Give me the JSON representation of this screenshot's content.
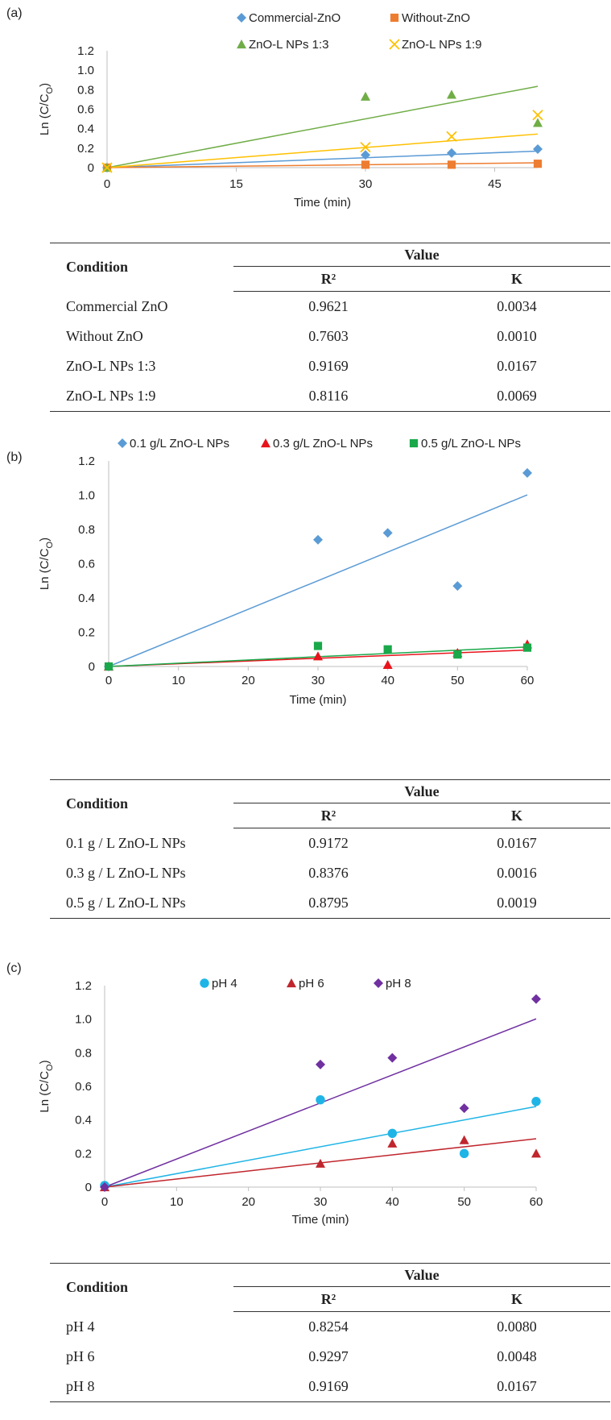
{
  "panels": [
    {
      "label": "(a)",
      "chart_data": {
        "type": "scatter",
        "xlabel": "Time (min)",
        "ylabel": "Ln (C/C",
        "ylabel_sub": "O",
        "ylabel_close": ")",
        "xlim": [
          0,
          50
        ],
        "ylim": [
          0,
          1.2
        ],
        "xticks": [
          0,
          15,
          30,
          45
        ],
        "yticks": [
          0,
          0.2,
          0.4,
          0.6,
          0.8,
          1.0,
          1.2
        ],
        "ytick_labels": [
          "0",
          "0.2",
          "0.4",
          "0.6",
          "0.8",
          "1.0",
          "1.2"
        ],
        "legend_position": "top",
        "series": [
          {
            "name": "Commercial-ZnO",
            "color": "#5b9bd5",
            "marker": "diamond",
            "x": [
              0,
              30,
              40,
              50
            ],
            "y": [
              0.0,
              0.13,
              0.15,
              0.19
            ],
            "fit_slope": 0.0034
          },
          {
            "name": "Without-ZnO",
            "color": "#ed7d31",
            "marker": "square",
            "x": [
              0,
              30,
              40,
              50
            ],
            "y": [
              0.0,
              0.03,
              0.03,
              0.04
            ],
            "fit_slope": 0.001
          },
          {
            "name": "ZnO-L NPs 1:3",
            "color": "#70ad47",
            "marker": "triangle",
            "x": [
              0,
              30,
              40,
              50
            ],
            "y": [
              0.0,
              0.73,
              0.75,
              0.46
            ],
            "fit_slope": 0.0167
          },
          {
            "name": "ZnO-L NPs 1:9",
            "color": "#ffc000",
            "marker": "x",
            "x": [
              0,
              30,
              40,
              50
            ],
            "y": [
              0.0,
              0.21,
              0.32,
              0.54
            ],
            "fit_slope": 0.0069
          }
        ]
      },
      "table": {
        "condition_header": "Condition",
        "value_header": "Value",
        "r2_header": "R²",
        "k_header": "K",
        "rows": [
          {
            "condition": "Commercial ZnO",
            "r2": "0.9621",
            "k": "0.0034"
          },
          {
            "condition": "Without ZnO",
            "r2": "0.7603",
            "k": "0.0010"
          },
          {
            "condition": "ZnO-L NPs 1:3",
            "r2": "0.9169",
            "k": "0.0167"
          },
          {
            "condition": "ZnO-L NPs 1:9",
            "r2": "0.8116",
            "k": "0.0069"
          }
        ]
      }
    },
    {
      "label": "(b)",
      "chart_data": {
        "type": "scatter",
        "xlabel": "Time (min)",
        "ylabel": "Ln (C/C",
        "ylabel_sub": "O",
        "ylabel_close": ")",
        "xlim": [
          0,
          60
        ],
        "ylim": [
          0,
          1.2
        ],
        "xticks": [
          0,
          10,
          20,
          30,
          40,
          50,
          60
        ],
        "yticks": [
          0,
          0.2,
          0.4,
          0.6,
          0.8,
          1.0,
          1.2
        ],
        "ytick_labels": [
          "0",
          "0.2",
          "0.4",
          "0.6",
          "0.8",
          "1.0",
          "1.2"
        ],
        "legend_position": "top",
        "series": [
          {
            "name": "0.1 g/L ZnO-L NPs",
            "color": "#5b9bd5",
            "marker": "diamond",
            "x": [
              0,
              30,
              40,
              50,
              60
            ],
            "y": [
              0.0,
              0.74,
              0.78,
              0.47,
              1.13
            ],
            "fit_slope": 0.0167
          },
          {
            "name": "0.3 g/L ZnO-L NPs",
            "color": "#e8141c",
            "marker": "triangle",
            "x": [
              0,
              30,
              40,
              50,
              60
            ],
            "y": [
              0.0,
              0.06,
              0.01,
              0.08,
              0.13
            ],
            "fit_slope": 0.0016
          },
          {
            "name": "0.5 g/L ZnO-L NPs",
            "color": "#1aa84a",
            "marker": "square",
            "x": [
              0,
              30,
              40,
              50,
              60
            ],
            "y": [
              0.0,
              0.12,
              0.1,
              0.07,
              0.11
            ],
            "fit_slope": 0.0019
          }
        ]
      },
      "table": {
        "condition_header": "Condition",
        "value_header": "Value",
        "r2_header": "R²",
        "k_header": "K",
        "rows": [
          {
            "condition": "0.1 g / L ZnO-L NPs",
            "r2": "0.9172",
            "k": "0.0167"
          },
          {
            "condition": "0.3 g / L ZnO-L NPs",
            "r2": "0.8376",
            "k": "0.0016"
          },
          {
            "condition": "0.5 g / L ZnO-L NPs",
            "r2": "0.8795",
            "k": "0.0019"
          }
        ]
      }
    },
    {
      "label": "(c)",
      "chart_data": {
        "type": "scatter",
        "xlabel": "Time (min)",
        "ylabel": "Ln (C/C",
        "ylabel_sub": "O",
        "ylabel_close": ")",
        "xlim": [
          0,
          60
        ],
        "ylim": [
          0,
          1.2
        ],
        "xticks": [
          0,
          10,
          20,
          30,
          40,
          50,
          60
        ],
        "yticks": [
          0,
          0.2,
          0.4,
          0.6,
          0.8,
          1.0,
          1.2
        ],
        "ytick_labels": [
          "0",
          "0.2",
          "0.4",
          "0.6",
          "0.8",
          "1.0",
          "1.2"
        ],
        "legend_position": "top",
        "series": [
          {
            "name": "pH 4",
            "color": "#1fb4e6",
            "marker": "circle",
            "x": [
              0,
              30,
              40,
              50,
              60
            ],
            "y": [
              0.01,
              0.52,
              0.32,
              0.2,
              0.51
            ],
            "fit_slope": 0.008
          },
          {
            "name": "pH 6",
            "color": "#c0262d",
            "marker": "triangle",
            "x": [
              0,
              30,
              40,
              50,
              60
            ],
            "y": [
              0.0,
              0.14,
              0.26,
              0.28,
              0.2
            ],
            "fit_slope": 0.0048
          },
          {
            "name": "pH 8",
            "color": "#7030a0",
            "marker": "diamond",
            "x": [
              0,
              30,
              40,
              50,
              60
            ],
            "y": [
              0.0,
              0.73,
              0.77,
              0.47,
              1.12
            ],
            "fit_slope": 0.0167
          }
        ]
      },
      "table": {
        "condition_header": "Condition",
        "value_header": "Value",
        "r2_header": "R²",
        "k_header": "K",
        "rows": [
          {
            "condition": "pH 4",
            "r2": "0.8254",
            "k": "0.0080"
          },
          {
            "condition": "pH 6",
            "r2": "0.9297",
            "k": "0.0048"
          },
          {
            "condition": "pH 8",
            "r2": "0.9169",
            "k": "0.0167"
          }
        ]
      }
    }
  ]
}
